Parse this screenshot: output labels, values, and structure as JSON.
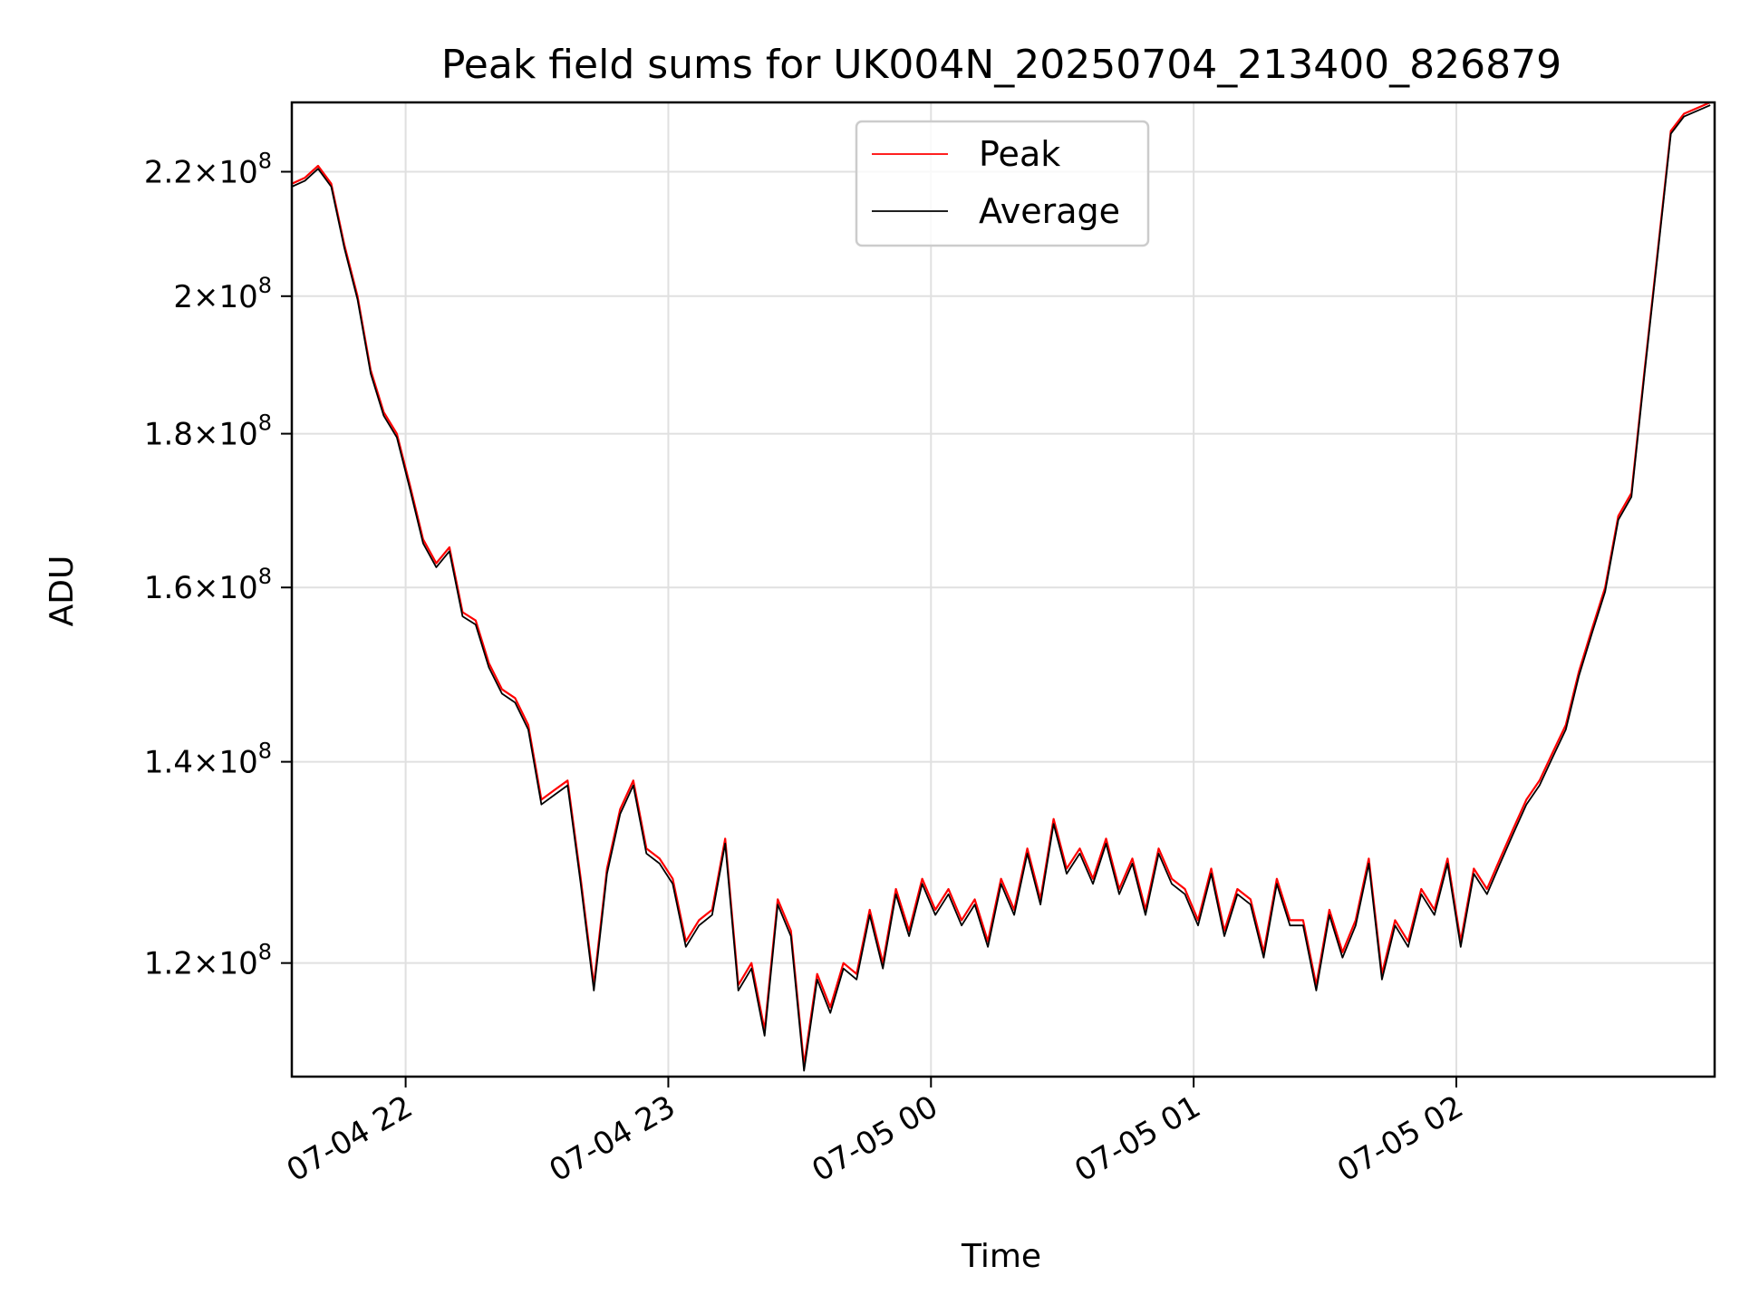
{
  "chart_data": {
    "type": "line",
    "title": "Peak field sums for UK004N_20250704_213400_826879",
    "xlabel": "Time",
    "ylabel": "ADU",
    "yscale": "log",
    "grid": true,
    "legend_position": "top-center",
    "xlim": [
      "2025-07-04 21:34",
      "2025-07-05 02:59"
    ],
    "ylim": [
      110000000,
      232000000
    ],
    "x_ticks": [
      {
        "value": "2025-07-04 22:00",
        "label": "07-04 22"
      },
      {
        "value": "2025-07-04 23:00",
        "label": "07-04 23"
      },
      {
        "value": "2025-07-05 00:00",
        "label": "07-05 00"
      },
      {
        "value": "2025-07-05 01:00",
        "label": "07-05 01"
      },
      {
        "value": "2025-07-05 02:00",
        "label": "07-05 02"
      }
    ],
    "y_ticks": [
      {
        "value": 120000000,
        "base": "1.2",
        "exp": "8"
      },
      {
        "value": 140000000,
        "base": "1.4",
        "exp": "8"
      },
      {
        "value": 160000000,
        "base": "1.6",
        "exp": "8"
      },
      {
        "value": 180000000,
        "base": "1.8",
        "exp": "8"
      },
      {
        "value": 200000000,
        "base": "2",
        "exp": "8"
      },
      {
        "value": 220000000,
        "base": "2.2",
        "exp": "8"
      }
    ],
    "x": [
      "2025-07-04 21:34",
      "2025-07-04 21:37",
      "2025-07-04 21:40",
      "2025-07-04 21:43",
      "2025-07-04 21:46",
      "2025-07-04 21:49",
      "2025-07-04 21:52",
      "2025-07-04 21:55",
      "2025-07-04 21:58",
      "2025-07-04 22:01",
      "2025-07-04 22:04",
      "2025-07-04 22:07",
      "2025-07-04 22:10",
      "2025-07-04 22:13",
      "2025-07-04 22:16",
      "2025-07-04 22:19",
      "2025-07-04 22:22",
      "2025-07-04 22:25",
      "2025-07-04 22:28",
      "2025-07-04 22:31",
      "2025-07-04 22:34",
      "2025-07-04 22:37",
      "2025-07-04 22:40",
      "2025-07-04 22:43",
      "2025-07-04 22:46",
      "2025-07-04 22:49",
      "2025-07-04 22:52",
      "2025-07-04 22:55",
      "2025-07-04 22:58",
      "2025-07-04 23:01",
      "2025-07-04 23:04",
      "2025-07-04 23:07",
      "2025-07-04 23:10",
      "2025-07-04 23:13",
      "2025-07-04 23:16",
      "2025-07-04 23:19",
      "2025-07-04 23:22",
      "2025-07-04 23:25",
      "2025-07-04 23:28",
      "2025-07-04 23:31",
      "2025-07-04 23:34",
      "2025-07-04 23:37",
      "2025-07-04 23:40",
      "2025-07-04 23:43",
      "2025-07-04 23:46",
      "2025-07-04 23:49",
      "2025-07-04 23:52",
      "2025-07-04 23:55",
      "2025-07-04 23:58",
      "2025-07-05 00:01",
      "2025-07-05 00:04",
      "2025-07-05 00:07",
      "2025-07-05 00:10",
      "2025-07-05 00:13",
      "2025-07-05 00:16",
      "2025-07-05 00:19",
      "2025-07-05 00:22",
      "2025-07-05 00:25",
      "2025-07-05 00:28",
      "2025-07-05 00:31",
      "2025-07-05 00:34",
      "2025-07-05 00:37",
      "2025-07-05 00:40",
      "2025-07-05 00:43",
      "2025-07-05 00:46",
      "2025-07-05 00:49",
      "2025-07-05 00:52",
      "2025-07-05 00:55",
      "2025-07-05 00:58",
      "2025-07-05 01:01",
      "2025-07-05 01:04",
      "2025-07-05 01:07",
      "2025-07-05 01:10",
      "2025-07-05 01:13",
      "2025-07-05 01:16",
      "2025-07-05 01:19",
      "2025-07-05 01:22",
      "2025-07-05 01:25",
      "2025-07-05 01:28",
      "2025-07-05 01:31",
      "2025-07-05 01:34",
      "2025-07-05 01:37",
      "2025-07-05 01:40",
      "2025-07-05 01:43",
      "2025-07-05 01:46",
      "2025-07-05 01:49",
      "2025-07-05 01:52",
      "2025-07-05 01:55",
      "2025-07-05 01:58",
      "2025-07-05 02:01",
      "2025-07-05 02:04",
      "2025-07-05 02:07",
      "2025-07-05 02:10",
      "2025-07-05 02:13",
      "2025-07-05 02:16",
      "2025-07-05 02:19",
      "2025-07-05 02:22",
      "2025-07-05 02:25",
      "2025-07-05 02:28",
      "2025-07-05 02:31",
      "2025-07-05 02:34",
      "2025-07-05 02:37",
      "2025-07-05 02:40",
      "2025-07-05 02:43",
      "2025-07-05 02:46",
      "2025-07-05 02:49",
      "2025-07-05 02:52",
      "2025-07-05 02:55",
      "2025-07-05 02:58"
    ],
    "series": [
      {
        "name": "Peak",
        "color": "#ff0000",
        "values": [
          218000000,
          219000000,
          221000000,
          218000000,
          208000000,
          200000000,
          189000000,
          183000000,
          180000000,
          173000000,
          166000000,
          163000000,
          165000000,
          157000000,
          156000000,
          151000000,
          148000000,
          147000000,
          144000000,
          136000000,
          137000000,
          138000000,
          128000000,
          118000000,
          129000000,
          135000000,
          138000000,
          131000000,
          130000000,
          128000000,
          122000000,
          124000000,
          125000000,
          132000000,
          118000000,
          120000000,
          114000000,
          126000000,
          123000000,
          111000000,
          119000000,
          116000000,
          120000000,
          119000000,
          125000000,
          120000000,
          127000000,
          123000000,
          128000000,
          125000000,
          127000000,
          124000000,
          126000000,
          122000000,
          128000000,
          125000000,
          131000000,
          126000000,
          134000000,
          129000000,
          131000000,
          128000000,
          132000000,
          127000000,
          130000000,
          125000000,
          131000000,
          128000000,
          127000000,
          124000000,
          129000000,
          123000000,
          127000000,
          126000000,
          121000000,
          128000000,
          124000000,
          124000000,
          118000000,
          125000000,
          121000000,
          124000000,
          130000000,
          119000000,
          124000000,
          122000000,
          127000000,
          125000000,
          130000000,
          122000000,
          129000000,
          127000000,
          130000000,
          133000000,
          136000000,
          138000000,
          141000000,
          144000000,
          150000000,
          155000000,
          160000000,
          169000000,
          172000000,
          189000000,
          207000000,
          227000000,
          230000000,
          231000000,
          232000000
        ]
      },
      {
        "name": "Average",
        "color": "#000000",
        "values": [
          217500000,
          218500000,
          220500000,
          217500000,
          207500000,
          199500000,
          188500000,
          182500000,
          179500000,
          172500000,
          165500000,
          162500000,
          164500000,
          156500000,
          155500000,
          150500000,
          147500000,
          146500000,
          143500000,
          135500000,
          136500000,
          137500000,
          127500000,
          117500000,
          128500000,
          134500000,
          137500000,
          130500000,
          129500000,
          127500000,
          121500000,
          123500000,
          124500000,
          131500000,
          117500000,
          119500000,
          113500000,
          125500000,
          122500000,
          110500000,
          118500000,
          115500000,
          119500000,
          118500000,
          124500000,
          119500000,
          126500000,
          122500000,
          127500000,
          124500000,
          126500000,
          123500000,
          125500000,
          121500000,
          127500000,
          124500000,
          130500000,
          125500000,
          133500000,
          128500000,
          130500000,
          127500000,
          131500000,
          126500000,
          129500000,
          124500000,
          130500000,
          127500000,
          126500000,
          123500000,
          128500000,
          122500000,
          126500000,
          125500000,
          120500000,
          127500000,
          123500000,
          123500000,
          117500000,
          124500000,
          120500000,
          123500000,
          129500000,
          118500000,
          123500000,
          121500000,
          126500000,
          124500000,
          129500000,
          121500000,
          128500000,
          126500000,
          129500000,
          132500000,
          135500000,
          137500000,
          140500000,
          143500000,
          149500000,
          154500000,
          159500000,
          168500000,
          171500000,
          188500000,
          206500000,
          226500000,
          229500000,
          230500000,
          231500000
        ]
      }
    ]
  }
}
